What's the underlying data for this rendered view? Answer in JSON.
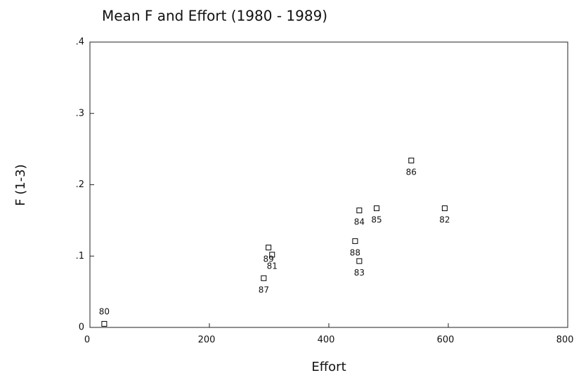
{
  "chart_data": {
    "type": "scatter",
    "title": "Mean F and Effort (1980 - 1989)",
    "x_label": "Effort",
    "y_label": "F (1-3)",
    "color": "#000000",
    "labels": [
      "80",
      "89",
      "81",
      "87",
      "88",
      "83",
      "84",
      "85",
      "86",
      "82"
    ],
    "x": [
      24,
      299,
      305,
      291,
      444,
      451,
      451,
      480,
      538,
      594
    ],
    "values": [
      0.005,
      0.112,
      0.102,
      0.069,
      0.121,
      0.093,
      0.164,
      0.167,
      0.234,
      0.167
    ],
    "xlim": [
      0,
      800
    ],
    "ylim": [
      0,
      0.4
    ],
    "xticks": [
      0,
      200,
      400,
      600,
      800
    ],
    "yticks": [
      0,
      {
        "value": 0.1,
        "label": ".1"
      },
      {
        "value": 0.2,
        "label": ".2"
      },
      {
        "value": 0.3,
        "label": ".3"
      },
      {
        "value": 0.4,
        "label": ".4"
      }
    ],
    "grid": false
  }
}
